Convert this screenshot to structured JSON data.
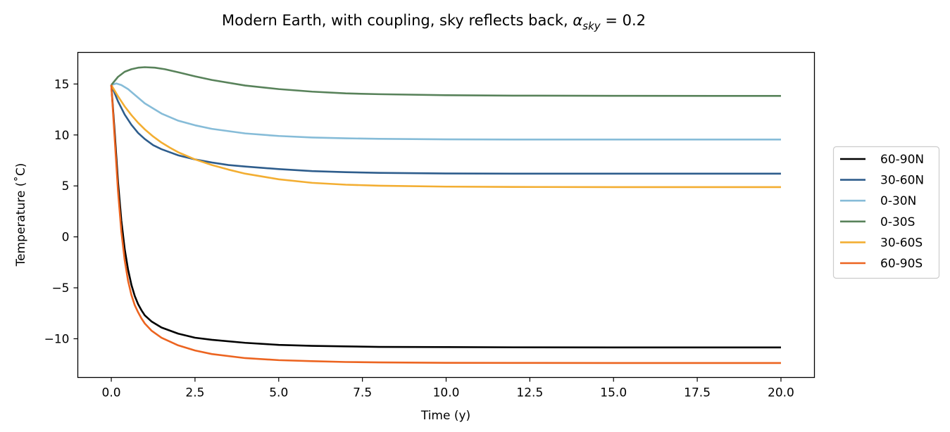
{
  "chart_data": {
    "type": "line",
    "title_main": "Modern Earth, with coupling, sky reflects back, ",
    "title_alpha": "α",
    "title_sub": "sky",
    "title_value": " = 0.2",
    "xlabel": "Time (y)",
    "ylabel": "Temperature (˚C)",
    "xlim": [
      -1.0,
      21.0
    ],
    "ylim": [
      -13.8,
      18.1
    ],
    "xticks": [
      0.0,
      2.5,
      5.0,
      7.5,
      10.0,
      12.5,
      15.0,
      17.5,
      20.0
    ],
    "xtick_labels": [
      "0.0",
      "2.5",
      "5.0",
      "7.5",
      "10.0",
      "12.5",
      "15.0",
      "17.5",
      "20.0"
    ],
    "yticks": [
      -10,
      -5,
      0,
      5,
      10,
      15
    ],
    "ytick_labels": [
      "−10",
      "−5",
      "0",
      "5",
      "10",
      "15"
    ],
    "grid": false,
    "legend_position": "outside-right",
    "series": [
      {
        "name": "60-90N",
        "color": "#000000",
        "x": [
          0,
          0.1,
          0.2,
          0.3,
          0.4,
          0.5,
          0.6,
          0.7,
          0.8,
          0.9,
          1.0,
          1.2,
          1.5,
          2.0,
          2.5,
          3.0,
          4.0,
          5.0,
          6.0,
          7.0,
          8.0,
          10.0,
          12.0,
          15.0,
          20.0
        ],
        "y": [
          14.9,
          10.3,
          5.4,
          1.6,
          -1.2,
          -3.2,
          -4.7,
          -5.8,
          -6.6,
          -7.2,
          -7.7,
          -8.3,
          -8.9,
          -9.5,
          -9.9,
          -10.1,
          -10.4,
          -10.6,
          -10.7,
          -10.75,
          -10.8,
          -10.82,
          -10.84,
          -10.85,
          -10.85
        ]
      },
      {
        "name": "30-60N",
        "color": "#2e5d8c",
        "x": [
          0,
          0.2,
          0.4,
          0.6,
          0.8,
          1.0,
          1.25,
          1.5,
          1.75,
          2.0,
          2.5,
          3.0,
          3.5,
          4.0,
          5.0,
          6.0,
          7.0,
          8.0,
          10.0,
          12.0,
          15.0,
          20.0
        ],
        "y": [
          14.9,
          13.3,
          12.0,
          11.0,
          10.2,
          9.6,
          9.0,
          8.6,
          8.3,
          8.0,
          7.6,
          7.3,
          7.05,
          6.9,
          6.65,
          6.45,
          6.35,
          6.28,
          6.22,
          6.2,
          6.2,
          6.2
        ]
      },
      {
        "name": "0-30N",
        "color": "#86bcd8",
        "x": [
          0,
          0.15,
          0.3,
          0.5,
          0.75,
          1.0,
          1.5,
          2.0,
          2.5,
          3.0,
          4.0,
          5.0,
          6.0,
          7.0,
          8.0,
          10.0,
          12.0,
          15.0,
          20.0
        ],
        "y": [
          14.9,
          15.05,
          14.9,
          14.5,
          13.8,
          13.1,
          12.1,
          11.4,
          10.95,
          10.6,
          10.15,
          9.9,
          9.75,
          9.67,
          9.62,
          9.57,
          9.55,
          9.55,
          9.55
        ]
      },
      {
        "name": "0-30S",
        "color": "#58825a",
        "x": [
          0,
          0.2,
          0.4,
          0.6,
          0.8,
          1.0,
          1.3,
          1.6,
          2.0,
          2.5,
          3.0,
          4.0,
          5.0,
          6.0,
          7.0,
          8.0,
          10.0,
          12.0,
          15.0,
          20.0
        ],
        "y": [
          14.9,
          15.7,
          16.2,
          16.45,
          16.6,
          16.65,
          16.6,
          16.45,
          16.15,
          15.75,
          15.4,
          14.85,
          14.5,
          14.25,
          14.08,
          14.0,
          13.9,
          13.86,
          13.84,
          13.83
        ]
      },
      {
        "name": "30-60S",
        "color": "#f3ae32",
        "x": [
          0,
          0.2,
          0.4,
          0.6,
          0.8,
          1.0,
          1.25,
          1.5,
          1.75,
          2.0,
          2.5,
          3.0,
          3.5,
          4.0,
          5.0,
          6.0,
          7.0,
          8.0,
          10.0,
          12.0,
          15.0,
          20.0
        ],
        "y": [
          14.9,
          13.8,
          12.8,
          11.95,
          11.2,
          10.55,
          9.85,
          9.25,
          8.75,
          8.3,
          7.6,
          7.05,
          6.6,
          6.2,
          5.65,
          5.3,
          5.12,
          5.02,
          4.93,
          4.9,
          4.88,
          4.88
        ]
      },
      {
        "name": "60-90S",
        "color": "#ec6420",
        "x": [
          0,
          0.1,
          0.2,
          0.3,
          0.4,
          0.5,
          0.6,
          0.7,
          0.8,
          0.9,
          1.0,
          1.2,
          1.5,
          2.0,
          2.5,
          3.0,
          4.0,
          5.0,
          6.0,
          7.0,
          8.0,
          10.0,
          12.0,
          15.0,
          20.0
        ],
        "y": [
          14.9,
          9.7,
          4.5,
          0.5,
          -2.3,
          -4.3,
          -5.7,
          -6.7,
          -7.4,
          -8.0,
          -8.5,
          -9.2,
          -9.9,
          -10.65,
          -11.15,
          -11.5,
          -11.9,
          -12.1,
          -12.2,
          -12.28,
          -12.32,
          -12.36,
          -12.37,
          -12.38,
          -12.38
        ]
      }
    ]
  }
}
